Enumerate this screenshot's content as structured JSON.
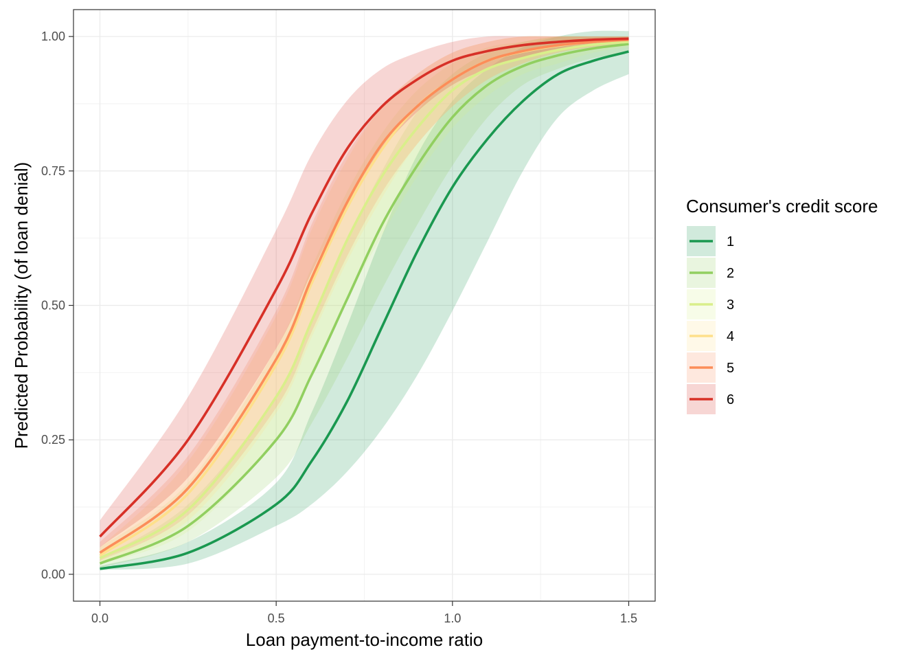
{
  "chart_data": {
    "type": "line",
    "title": "",
    "xlabel": "Loan payment-to-income ratio",
    "ylabel": "Predicted Probability (of loan denial)",
    "xlim": [
      -0.075,
      1.575
    ],
    "ylim": [
      -0.05,
      1.05
    ],
    "x_ticks": [
      0,
      0.5,
      1,
      1.5
    ],
    "x_tick_labels": [
      "0.0",
      "0.5",
      "1.0",
      "1.5"
    ],
    "y_ticks": [
      0,
      0.25,
      0.5,
      0.75,
      1
    ],
    "y_tick_labels": [
      "0.00",
      "0.25",
      "0.50",
      "0.75",
      "1.00"
    ],
    "grid": true,
    "legend": {
      "title": "Consumer's credit score",
      "placement": "right"
    },
    "series": [
      {
        "name": "1",
        "color": "#1a9850",
        "x": [
          0,
          0.25,
          0.5,
          0.6,
          0.7,
          0.8,
          0.9,
          1.0,
          1.1,
          1.2,
          1.3,
          1.4,
          1.5
        ],
        "y": [
          0.01,
          0.04,
          0.13,
          0.21,
          0.32,
          0.46,
          0.6,
          0.72,
          0.81,
          0.88,
          0.93,
          0.955,
          0.972
        ],
        "lower": [
          0.008,
          0.02,
          0.09,
          0.13,
          0.19,
          0.27,
          0.37,
          0.49,
          0.62,
          0.75,
          0.85,
          0.9,
          0.93
        ],
        "upper": [
          0.015,
          0.06,
          0.17,
          0.3,
          0.46,
          0.63,
          0.78,
          0.88,
          0.94,
          0.98,
          1.0,
          1.01,
          1.01
        ]
      },
      {
        "name": "2",
        "color": "#91cf60",
        "x": [
          0,
          0.25,
          0.5,
          0.6,
          0.7,
          0.8,
          0.9,
          1.0,
          1.1,
          1.2,
          1.3,
          1.4,
          1.5
        ],
        "y": [
          0.02,
          0.09,
          0.25,
          0.37,
          0.51,
          0.65,
          0.76,
          0.85,
          0.91,
          0.945,
          0.965,
          0.978,
          0.986
        ],
        "lower": [
          0.012,
          0.06,
          0.18,
          0.28,
          0.4,
          0.53,
          0.65,
          0.76,
          0.85,
          0.91,
          0.94,
          0.96,
          0.97
        ],
        "upper": [
          0.03,
          0.13,
          0.33,
          0.47,
          0.62,
          0.75,
          0.86,
          0.93,
          0.97,
          0.99,
          1.0,
          1.0,
          1.0
        ]
      },
      {
        "name": "3",
        "color": "#d9ef8b",
        "x": [
          0,
          0.25,
          0.5,
          0.6,
          0.7,
          0.8,
          0.9,
          1.0,
          1.1,
          1.2,
          1.3,
          1.4,
          1.5
        ],
        "y": [
          0.03,
          0.12,
          0.33,
          0.47,
          0.62,
          0.74,
          0.83,
          0.9,
          0.94,
          0.96,
          0.975,
          0.985,
          0.99
        ],
        "lower": [
          0.018,
          0.08,
          0.25,
          0.37,
          0.51,
          0.63,
          0.74,
          0.83,
          0.89,
          0.93,
          0.95,
          0.97,
          0.98
        ],
        "upper": [
          0.05,
          0.17,
          0.42,
          0.57,
          0.71,
          0.82,
          0.9,
          0.95,
          0.98,
          0.99,
          1.0,
          1.0,
          1.0
        ]
      },
      {
        "name": "4",
        "color": "#fee08b",
        "x": [
          0,
          0.25,
          0.5,
          0.6,
          0.7,
          0.8,
          0.9,
          1.0,
          1.1,
          1.2,
          1.3,
          1.4,
          1.5
        ],
        "y": [
          0.035,
          0.15,
          0.39,
          0.54,
          0.68,
          0.79,
          0.87,
          0.92,
          0.955,
          0.972,
          0.983,
          0.99,
          0.994
        ],
        "lower": [
          0.02,
          0.1,
          0.3,
          0.44,
          0.58,
          0.7,
          0.8,
          0.87,
          0.92,
          0.95,
          0.97,
          0.98,
          0.985
        ],
        "upper": [
          0.05,
          0.21,
          0.48,
          0.64,
          0.77,
          0.87,
          0.93,
          0.97,
          0.99,
          1.0,
          1.0,
          1.0,
          1.0
        ]
      },
      {
        "name": "5",
        "color": "#fc8d59",
        "x": [
          0,
          0.25,
          0.5,
          0.6,
          0.7,
          0.8,
          0.9,
          1.0,
          1.1,
          1.2,
          1.3,
          1.4,
          1.5
        ],
        "y": [
          0.04,
          0.16,
          0.4,
          0.55,
          0.69,
          0.8,
          0.87,
          0.92,
          0.955,
          0.973,
          0.984,
          0.99,
          0.994
        ],
        "lower": [
          0.025,
          0.11,
          0.31,
          0.45,
          0.59,
          0.71,
          0.8,
          0.87,
          0.92,
          0.95,
          0.97,
          0.98,
          0.985
        ],
        "upper": [
          0.06,
          0.22,
          0.49,
          0.65,
          0.78,
          0.87,
          0.93,
          0.97,
          0.99,
          1.0,
          1.0,
          1.0,
          1.0
        ]
      },
      {
        "name": "6",
        "color": "#d73027",
        "x": [
          0,
          0.25,
          0.5,
          0.6,
          0.7,
          0.8,
          0.9,
          1.0,
          1.1,
          1.2,
          1.3,
          1.4,
          1.5
        ],
        "y": [
          0.07,
          0.25,
          0.53,
          0.67,
          0.79,
          0.87,
          0.92,
          0.955,
          0.973,
          0.984,
          0.99,
          0.994,
          0.996
        ],
        "lower": [
          0.05,
          0.18,
          0.42,
          0.56,
          0.69,
          0.79,
          0.86,
          0.91,
          0.94,
          0.96,
          0.975,
          0.985,
          0.99
        ],
        "upper": [
          0.1,
          0.33,
          0.64,
          0.78,
          0.88,
          0.94,
          0.97,
          0.99,
          1.0,
          1.0,
          1.0,
          1.0,
          1.0
        ]
      }
    ]
  }
}
